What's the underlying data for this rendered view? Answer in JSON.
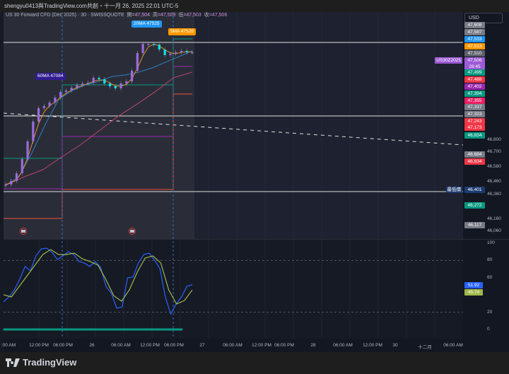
{
  "header": {
    "caption": "shengyu0413與TradingView.com共創・十一月 26, 2025 22:01 UTC-5"
  },
  "legend": {
    "symbol": "US 30 Forward CFD (Dec 2025) · 30 · SWISSQUOTE",
    "open_label": "開",
    "open": "=47,504",
    "high_label": "高",
    "high": "=47,509",
    "low_label": "低",
    "low": "=47,503",
    "close_label": "收",
    "close": "=47,506"
  },
  "currency": "USD",
  "tooltips": {
    "ma20": "20MA 47525",
    "ma5": "5MA 47526",
    "ma60": "60MA 47084"
  },
  "symbol_tag": "US30Z2025",
  "low_tag": "最低價",
  "price_tags": [
    {
      "v": "47,608",
      "c": "#787b86"
    },
    {
      "v": "47,587",
      "c": "#787b86"
    },
    {
      "v": "47,533",
      "c": "#2196f3"
    },
    {
      "v": "47,513",
      "c": "#ff9800"
    },
    {
      "v": "47,510",
      "c": "#5d606b"
    },
    {
      "v": "47,506",
      "sub": "28:45",
      "c": "#9c5ad6"
    },
    {
      "v": "47,499",
      "c": "#089981"
    },
    {
      "v": "47,488",
      "c": "#f23645"
    },
    {
      "v": "47,402",
      "c": "#9c27b0"
    },
    {
      "v": "47,394",
      "c": "#089981"
    },
    {
      "v": "47,355",
      "c": "#e91e63"
    },
    {
      "v": "47,337",
      "c": "#787b86"
    },
    {
      "v": "47,323",
      "c": "#787b86"
    },
    {
      "v": "47,243",
      "c": "#f23645"
    },
    {
      "v": "47,173",
      "c": "#f23645"
    },
    {
      "v": "46,834",
      "c": "#089981"
    },
    {
      "v": "46,684",
      "c": "#787b86"
    },
    {
      "v": "46,634",
      "c": "#f23645"
    },
    {
      "v": "46,401",
      "c": "#1c3a70"
    },
    {
      "v": "46,272",
      "c": "#089981"
    },
    {
      "v": "46,117",
      "c": "#787b86"
    }
  ],
  "stoch_tags": [
    {
      "v": "51.92",
      "c": "#2962ff"
    },
    {
      "v": "45.74",
      "c": "#9eb84a"
    }
  ],
  "time_labels": [
    ":00 AM",
    "12:00 PM",
    "06:00 PM",
    "26",
    "06:00 AM",
    "12:00 PM",
    "06:00 PM",
    "27",
    "06:00 AM",
    "12:00 PM",
    "06:00 PM",
    "28",
    "06:00 AM",
    "12:00 PM",
    "30",
    "十二月",
    "06:00 AM"
  ],
  "brand": "TradingView",
  "chart_data": [
    {
      "type": "candlestick",
      "title": "US 30 Forward CFD (Dec 2025) · 30 · SWISSQUOTE",
      "price_axis_ticks": [
        46800,
        46700,
        46580,
        46460,
        46360,
        46160,
        46060
      ],
      "ylim": [
        46060,
        47608
      ],
      "closes": [
        46437,
        46466,
        46528,
        46643,
        46786,
        46946,
        47054,
        47071,
        47100,
        47140,
        47186,
        47197,
        47220,
        47243,
        47254,
        47260,
        47300,
        47289,
        47254,
        47231,
        47214,
        47254,
        47271,
        47357,
        47500,
        47574,
        47574,
        47568,
        47528,
        47483,
        47494,
        47506,
        47517,
        47506,
        47506
      ],
      "ma_blue": [
        46431,
        46500,
        46700,
        46929,
        47129,
        47197,
        47243,
        47271,
        47311,
        47323,
        47346,
        47380,
        47426,
        47471,
        47517
      ],
      "ma_pink": [
        46431,
        46500,
        46557,
        46660,
        46757,
        46871,
        46986,
        47083,
        47186,
        47300,
        47346
      ],
      "colors": {
        "up": "#9c6ade",
        "down": "#00e5ff",
        "ma5": "#e0902a",
        "ma_blue": "#2f7fc1",
        "ma_pink": "#b8456a"
      }
    },
    {
      "type": "line",
      "ylim": [
        0,
        100
      ],
      "y_ticks": [
        100,
        80,
        60,
        20,
        0
      ],
      "levels": [
        80,
        20
      ],
      "series": [
        {
          "color": "#2962ff",
          "values": [
            32,
            37.7,
            45.9,
            58.2,
            73,
            68,
            85.2,
            93.4,
            94.3,
            89.3,
            81.1,
            85.2,
            90.2,
            86.9,
            78.7,
            77,
            73,
            78.7,
            72.1,
            50,
            41.8,
            24.6,
            26.2,
            59.8,
            60.7,
            77,
            86.9,
            88.5,
            80.3,
            70.5,
            37.7,
            18,
            29.5,
            37.7,
            50,
            51.92
          ]
        },
        {
          "color": "#9eb84a",
          "values": [
            40.2,
            37.7,
            50,
            62.3,
            74.6,
            86.9,
            92.6,
            86.9,
            86.9,
            88.5,
            82,
            78.7,
            74.6,
            58.2,
            39.3,
            32.8,
            45.9,
            66.4,
            82.8,
            85.2,
            77,
            45.9,
            29.5,
            33.6,
            45.74
          ]
        }
      ]
    }
  ]
}
